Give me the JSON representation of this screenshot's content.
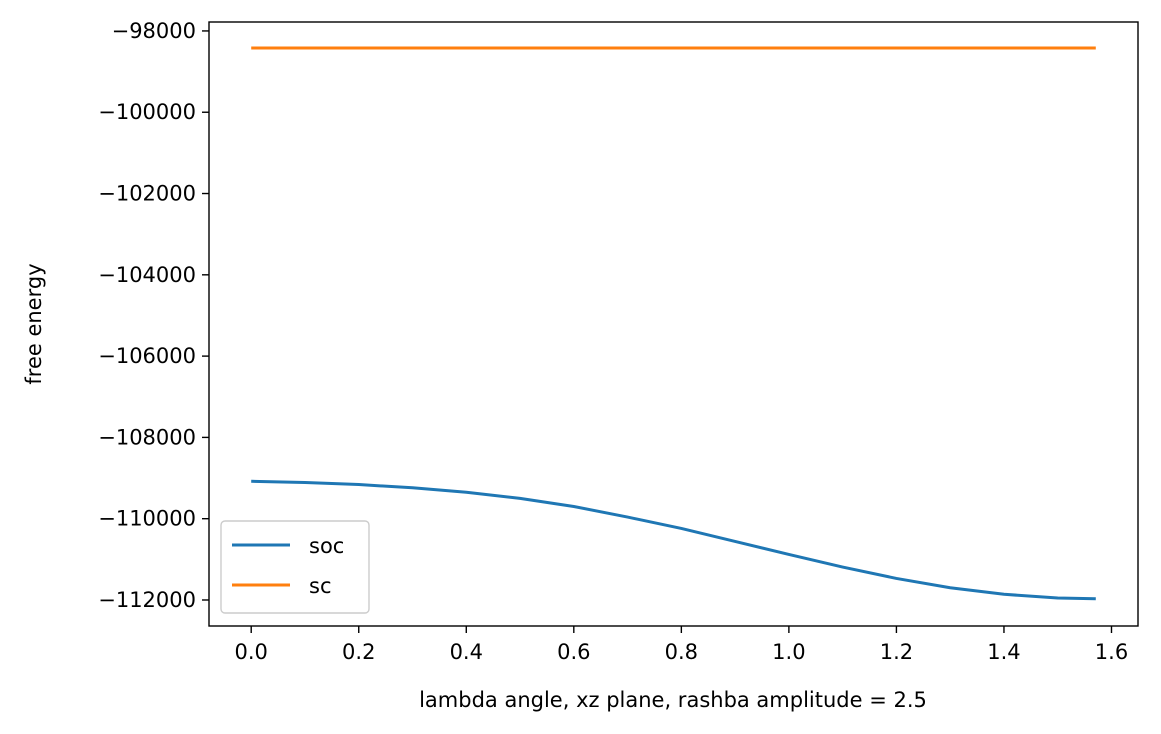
{
  "chart_data": {
    "type": "line",
    "title": "",
    "xlabel": "lambda angle, xz plane, rashba amplitude = 2.5",
    "ylabel": "free energy",
    "xlim": [
      -0.0785,
      1.6493
    ],
    "ylim": [
      -112640,
      -97780
    ],
    "xticks": [
      0.0,
      0.2,
      0.4,
      0.6,
      0.8,
      1.0,
      1.2,
      1.4,
      1.6
    ],
    "xtick_labels": [
      "0.0",
      "0.2",
      "0.4",
      "0.6",
      "0.8",
      "1.0",
      "1.2",
      "1.4",
      "1.6"
    ],
    "yticks": [
      -98000,
      -100000,
      -102000,
      -104000,
      -106000,
      -108000,
      -110000,
      -112000
    ],
    "ytick_labels": [
      "−98000",
      "−100000",
      "−102000",
      "−104000",
      "−106000",
      "−108000",
      "−110000",
      "−112000"
    ],
    "grid": false,
    "legend_position": "lower-left",
    "series": [
      {
        "name": "soc",
        "color": "#1f77b4",
        "x": [
          0.0,
          0.1,
          0.2,
          0.3,
          0.4,
          0.5,
          0.6,
          0.7,
          0.8,
          0.9,
          1.0,
          1.1,
          1.2,
          1.3,
          1.4,
          1.5,
          1.5708
        ],
        "values": [
          -109080,
          -109110,
          -109160,
          -109240,
          -109350,
          -109500,
          -109700,
          -109960,
          -110240,
          -110560,
          -110880,
          -111190,
          -111470,
          -111700,
          -111860,
          -111950,
          -111970
        ]
      },
      {
        "name": "sc",
        "color": "#ff7f0e",
        "x": [
          0.0,
          1.5708
        ],
        "values": [
          -98420,
          -98420
        ]
      }
    ]
  }
}
